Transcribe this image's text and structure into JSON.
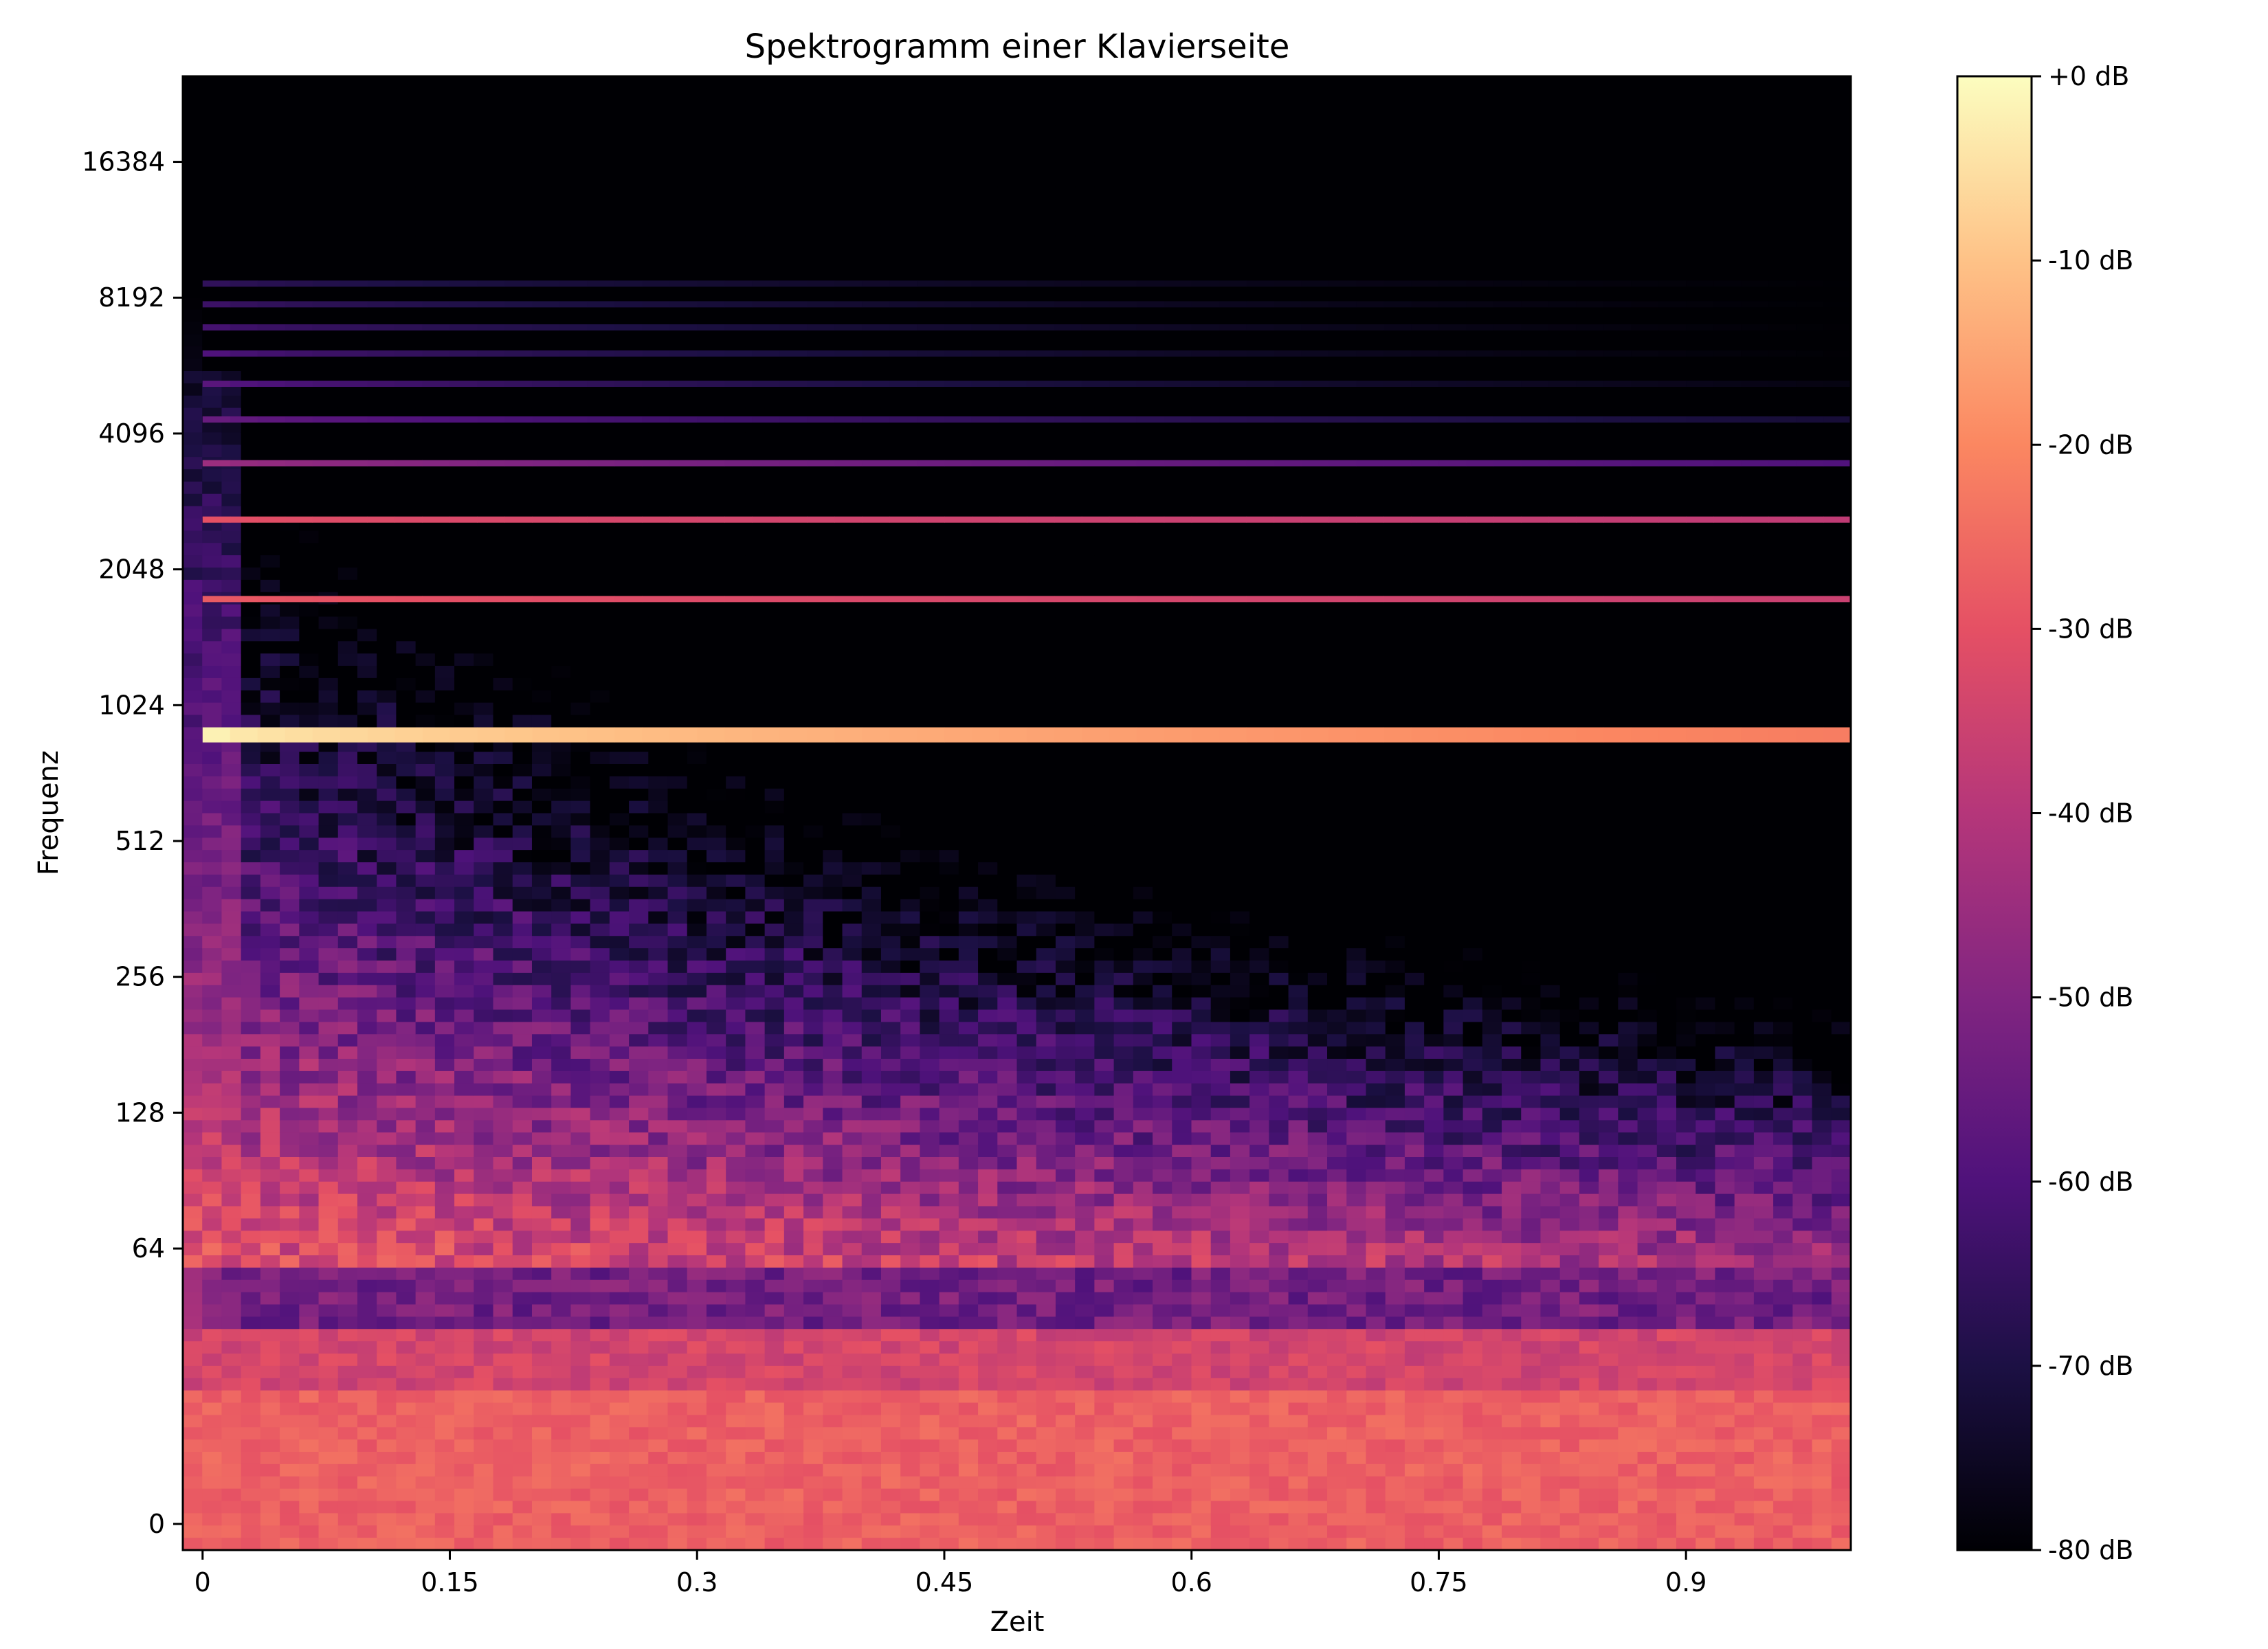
{
  "chart_data": {
    "type": "heatmap",
    "title": "Spektrogramm einer Klavierseite",
    "xlabel": "Zeit",
    "ylabel": "Frequenz",
    "x_ticks": [
      "0",
      "0.15",
      "0.3",
      "0.45",
      "0.6",
      "0.75",
      "0.9"
    ],
    "x_tick_values": [
      0,
      0.15,
      0.3,
      0.45,
      0.6,
      0.75,
      0.9
    ],
    "y_ticks": [
      "0",
      "64",
      "128",
      "256",
      "512",
      "1024",
      "2048",
      "4096",
      "8192",
      "16384"
    ],
    "y_tick_values": [
      0,
      64,
      128,
      256,
      512,
      1024,
      2048,
      4096,
      8192,
      16384
    ],
    "y_scale": "log2",
    "xlim": [
      -0.012,
      1.0
    ],
    "ylim_hz": [
      0,
      22050
    ],
    "colormap": "magma",
    "colorbar_ticks": [
      "+0 dB",
      "-10 dB",
      "-20 dB",
      "-30 dB",
      "-40 dB",
      "-50 dB",
      "-60 dB",
      "-70 dB",
      "-80 dB"
    ],
    "colorbar_tick_values": [
      0,
      -10,
      -20,
      -30,
      -40,
      -50,
      -60,
      -70,
      -80
    ],
    "colorbar_range_db": [
      -80,
      0
    ],
    "partials": [
      {
        "freq_hz": 880,
        "level_db_start": -2,
        "level_db_end": -22
      },
      {
        "freq_hz": 1760,
        "level_db_start": -28,
        "level_db_end": -36
      },
      {
        "freq_hz": 2640,
        "level_db_start": -30,
        "level_db_end": -38
      },
      {
        "freq_hz": 3520,
        "level_db_start": -45,
        "level_db_end": -60
      },
      {
        "freq_hz": 4400,
        "level_db_start": -55,
        "level_db_end": -72
      },
      {
        "freq_hz": 5280,
        "level_db_start": -58,
        "level_db_end": -78
      },
      {
        "freq_hz": 6160,
        "level_db_start": -60,
        "level_db_end": -80
      },
      {
        "freq_hz": 7040,
        "level_db_start": -62,
        "level_db_end": -80
      },
      {
        "freq_hz": 7920,
        "level_db_start": -64,
        "level_db_end": -80
      },
      {
        "freq_hz": 8800,
        "level_db_start": -66,
        "level_db_end": -80
      }
    ],
    "low_frequency_energy_db": {
      "0_hz": -25,
      "43_hz": -28,
      "86_hz": -48
    },
    "grid": false
  }
}
